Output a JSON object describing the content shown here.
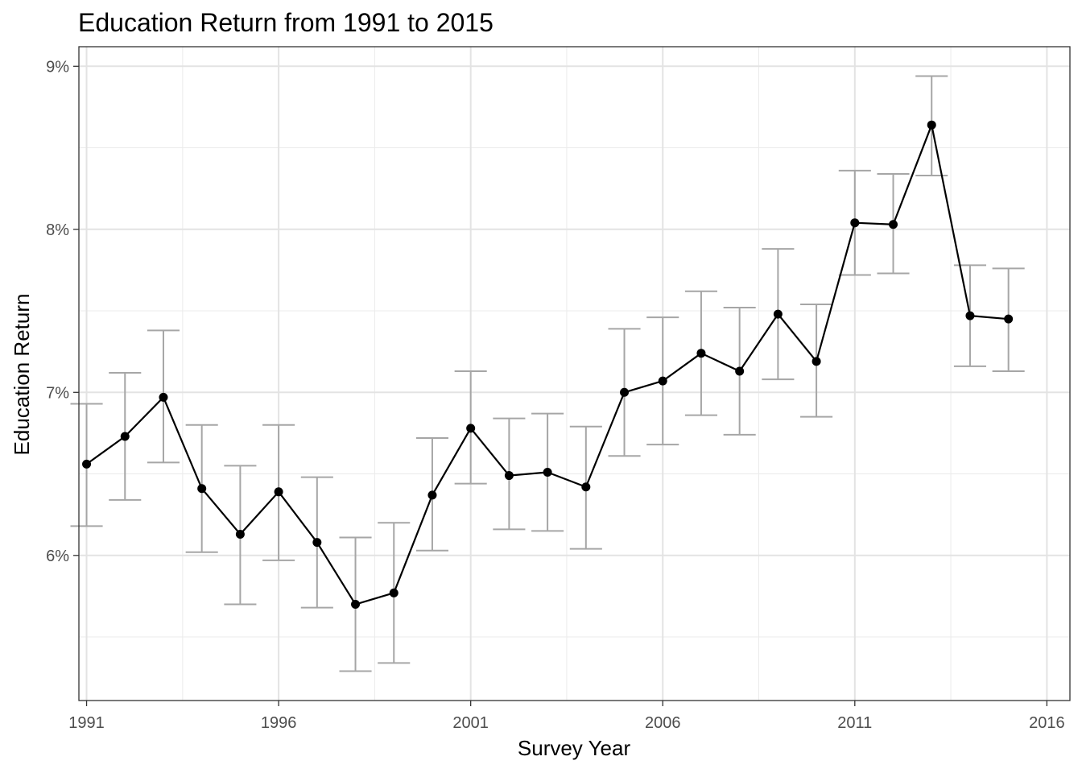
{
  "chart_data": {
    "type": "line",
    "title": "Education Return from 1991 to 2015",
    "xlabel": "Survey Year",
    "ylabel": "Education Return",
    "xlim": [
      1990.8,
      2016.6
    ],
    "ylim": [
      5.11,
      9.12
    ],
    "x_ticks": [
      1991,
      1996,
      2001,
      2006,
      2011,
      2016
    ],
    "x_tick_labels": [
      "1991",
      "1996",
      "2001",
      "2006",
      "2011",
      "2016"
    ],
    "y_ticks": [
      6,
      7,
      8,
      9
    ],
    "y_tick_labels": [
      "6%",
      "7%",
      "8%",
      "9%"
    ],
    "grid": true,
    "theme": "bw",
    "line_color": "#000000",
    "errorbar_color": "#a6a6a6",
    "series": [
      {
        "x": [
          1991,
          1992,
          1993,
          1994,
          1995,
          1996,
          1997,
          1998,
          1999,
          2000,
          2001,
          2002,
          2003,
          2004,
          2005,
          2006,
          2007,
          2008,
          2009,
          2010,
          2011,
          2012,
          2013,
          2014,
          2015
        ],
        "y": [
          6.56,
          6.73,
          6.97,
          6.41,
          6.13,
          6.39,
          6.08,
          5.7,
          5.77,
          6.37,
          6.78,
          6.49,
          6.51,
          6.42,
          7.0,
          7.07,
          7.24,
          7.13,
          7.48,
          7.19,
          8.04,
          8.03,
          8.64,
          7.47,
          7.45
        ],
        "lower": [
          6.18,
          6.34,
          6.57,
          6.02,
          5.7,
          5.97,
          5.68,
          5.29,
          5.34,
          6.03,
          6.44,
          6.16,
          6.15,
          6.04,
          6.61,
          6.68,
          6.86,
          6.74,
          7.08,
          6.85,
          7.72,
          7.73,
          8.33,
          7.16,
          7.13
        ],
        "upper": [
          6.93,
          7.12,
          7.38,
          6.8,
          6.55,
          6.8,
          6.48,
          6.11,
          6.2,
          6.72,
          7.13,
          6.84,
          6.87,
          6.79,
          7.39,
          7.46,
          7.62,
          7.52,
          7.88,
          7.54,
          8.36,
          8.34,
          8.94,
          7.78,
          7.76
        ]
      }
    ]
  }
}
